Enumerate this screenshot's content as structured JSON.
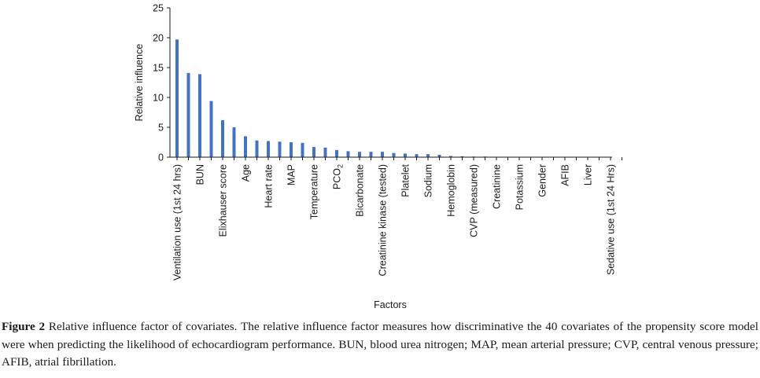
{
  "chart_data": {
    "type": "bar",
    "xlabel": "Factors",
    "ylabel": "Relative influence",
    "ylim": [
      0,
      25
    ],
    "yticks": [
      0,
      5,
      10,
      15,
      20,
      25
    ],
    "grid": false,
    "bar_color": "#4472c4",
    "categories": [
      "Ventilation use (1st 24 hrs)",
      "",
      "BUN",
      "",
      "Elixhauser score",
      "",
      "Age",
      "",
      "Heart rate",
      "",
      "MAP",
      "",
      "Temperature",
      "",
      "PCO2",
      "",
      "Bicarbonate",
      "",
      "Creatinine kinase (tested)",
      "",
      "Platelet",
      "",
      "Sodium",
      "",
      "Hemoglobin",
      "",
      "CVP (measured)",
      "",
      "Creatinine",
      "",
      "Potassium",
      "",
      "Gender",
      "",
      "AFIB",
      "",
      "Liver",
      "",
      "Sedative use (1st 24 Hrs)",
      ""
    ],
    "values": [
      19.7,
      14.1,
      13.9,
      9.4,
      6.2,
      5.0,
      3.5,
      2.8,
      2.7,
      2.6,
      2.5,
      2.4,
      1.7,
      1.6,
      1.2,
      1.0,
      0.9,
      0.9,
      0.9,
      0.7,
      0.6,
      0.5,
      0.5,
      0.4,
      0.2,
      0.15,
      0.1,
      0.1,
      0.05,
      0.03,
      0.02,
      0.02,
      0.01,
      0.01,
      0.01,
      0.0,
      0.0,
      0.0,
      0.0,
      0.0
    ]
  },
  "caption": {
    "label": "Figure 2",
    "text": " Relative influence factor of covariates. The relative influence factor measures how discriminative the 40 covariates of the propensity score model were when predicting the likelihood of echocardiogram performance. BUN, blood urea nitrogen; MAP, mean arterial pressure; CVP, central venous pressure; AFIB, atrial fibrillation."
  }
}
